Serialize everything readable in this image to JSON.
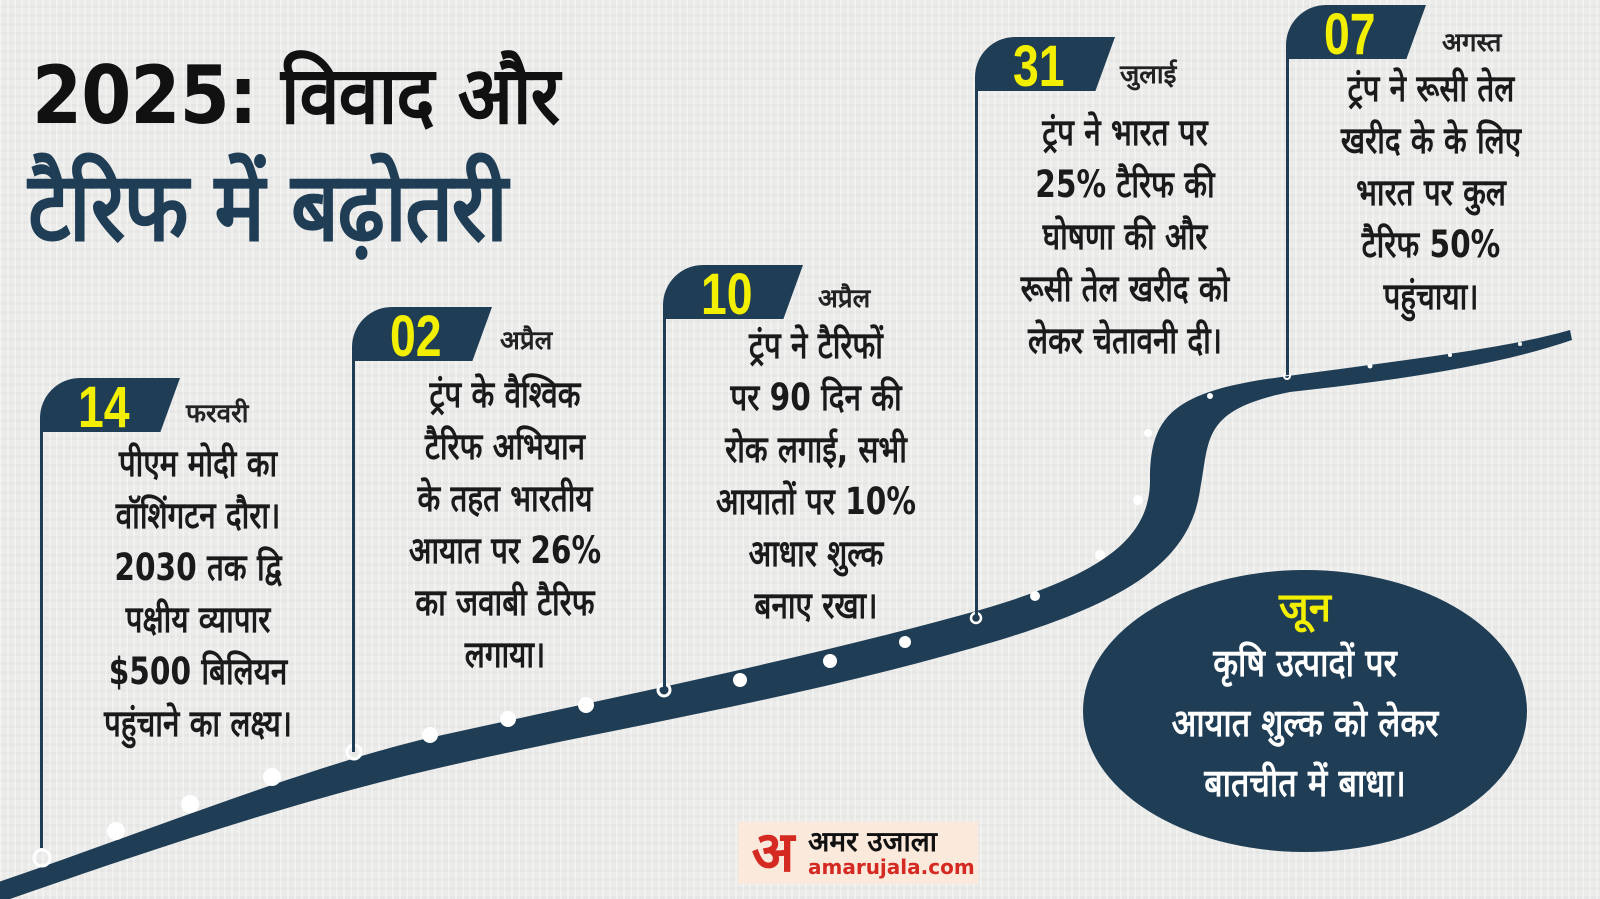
{
  "title": {
    "line1": "2025: विवाद और",
    "line2": "टैरिफ में बढ़ोतरी"
  },
  "colors": {
    "navy": "#1f3d55",
    "yellow": "#f2f000",
    "background": "#ebebea",
    "logo_red": "#d42a22"
  },
  "events": [
    {
      "day": "14",
      "month": "फरवरी",
      "text": "पीएम मोदी का\nवॉशिंगटन दौरा।\n2030 तक द्वि\nपक्षीय व्यापार\n$500 बिलियन\nपहुंचाने का लक्ष्य।"
    },
    {
      "day": "02",
      "month": "अप्रैल",
      "text": "ट्रंप के वैश्विक\nटैरिफ अभियान\nके तहत भारतीय\nआयात पर 26%\nका जवाबी टैरिफ\nलगाया।"
    },
    {
      "day": "10",
      "month": "अप्रैल",
      "text": "ट्रंप ने टैरिफों\nपर 90 दिन की\nरोक लगाई, सभी\nआयातों पर 10%\nआधार शुल्क\nबनाए रखा।"
    },
    {
      "day": "31",
      "month": "जुलाई",
      "text": "ट्रंप ने भारत पर\n25% टैरिफ की\nघोषणा की और\nरूसी तेल खरीद को\nलेकर चेतावनी दी।"
    },
    {
      "day": "07",
      "month": "अगस्त",
      "text": "ट्रंप ने रूसी तेल\nखरीद के के लिए\nभारत पर कुल\nटैरिफ 50%\nपहुंचाया।"
    }
  ],
  "june": {
    "month": "जून",
    "text": "कृषि उत्पादों पर\nआयात शुल्क को लेकर\nबातचीत में बाधा।"
  },
  "logo": {
    "mark": "अ",
    "name": "अमर उजाला",
    "url": "amarujala.com"
  }
}
